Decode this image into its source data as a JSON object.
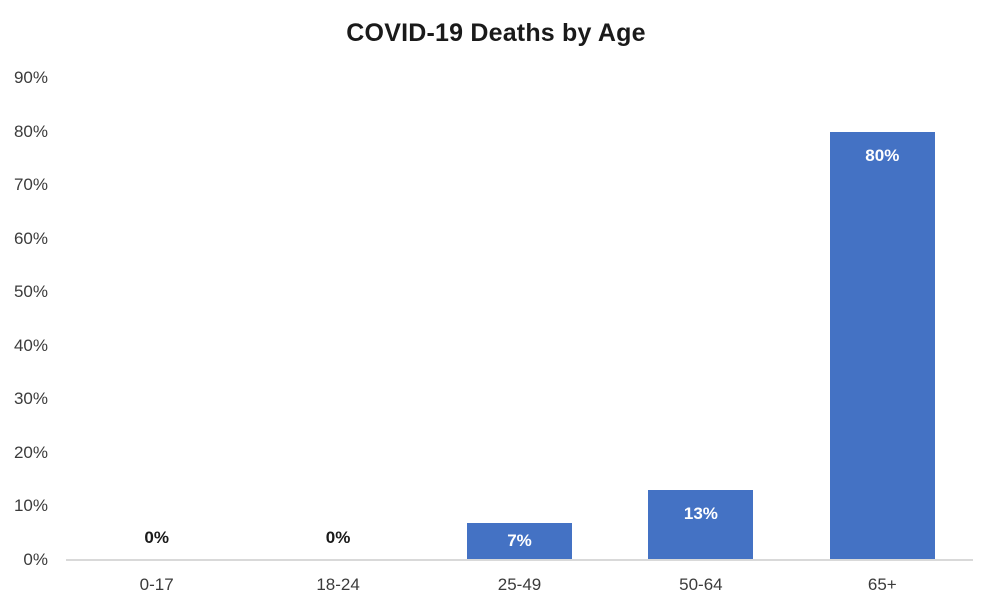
{
  "chart_data": {
    "type": "bar",
    "title": "COVID-19 Deaths by Age",
    "categories": [
      "0-17",
      "18-24",
      "25-49",
      "50-64",
      "65+"
    ],
    "values": [
      0,
      0,
      7,
      13,
      80
    ],
    "value_labels": [
      "0%",
      "0%",
      "7%",
      "13%",
      "80%"
    ],
    "ytick_labels": [
      "0%",
      "10%",
      "20%",
      "30%",
      "40%",
      "50%",
      "60%",
      "70%",
      "80%",
      "90%"
    ],
    "ytick_step": 10,
    "ylim": [
      0,
      90
    ],
    "xlabel": "",
    "ylabel": "",
    "grid": false,
    "legend": false,
    "colors": {
      "bar": "#4472C4",
      "label_inside": "#FFFFFF",
      "label_outside": "#1A1A1A",
      "axis_line": "#D9D9D9",
      "axis_text": "#3B3B3B",
      "title_text": "#1A1A1A",
      "background": "#FFFFFF"
    }
  }
}
